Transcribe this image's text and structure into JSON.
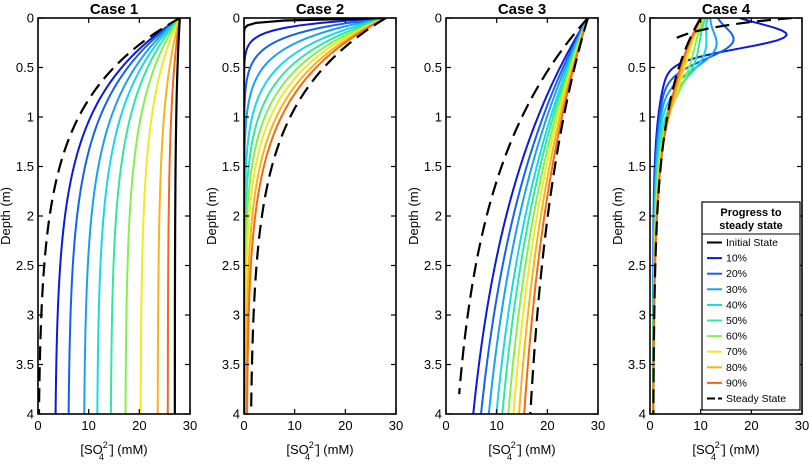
{
  "figure": {
    "colors": {
      "initial": "#000000",
      "steady": "#000000",
      "progress": [
        "#0a1ad8",
        "#1262f0",
        "#1aa0f0",
        "#18d8e6",
        "#2ee8a0",
        "#84f050",
        "#f0ea20",
        "#f8b418",
        "#f06a18"
      ]
    }
  },
  "legend": {
    "title_line1": "Progress to",
    "title_line2": "steady state",
    "items": [
      "Initial State",
      "10%",
      "20%",
      "30%",
      "40%",
      "50%",
      "60%",
      "70%",
      "80%",
      "90%",
      "Steady State"
    ]
  },
  "chart_data": [
    {
      "type": "line",
      "title": "Case 1",
      "xlabel_prefix": "[SO",
      "xlabel_sub": "4",
      "xlabel_sup": "2−",
      "xlabel_suffix": "] (mM)",
      "ylabel": "Depth (m)",
      "xlim": [
        0,
        30
      ],
      "ylim": [
        0,
        4
      ],
      "xticks": [
        "0",
        "10",
        "20",
        "30"
      ],
      "yticks": [
        "0",
        "0.5",
        "1",
        "1.5",
        "2",
        "2.5",
        "3",
        "3.5",
        "4"
      ],
      "y_inverted": true,
      "model": "sat",
      "series": [
        {
          "name": "Initial State",
          "c0": 28,
          "b": 27,
          "k": 0.8,
          "dashed": false
        },
        {
          "name": "10%",
          "c0": 28,
          "b": 3.3,
          "k": 0.8
        },
        {
          "name": "20%",
          "c0": 28,
          "b": 5.9,
          "k": 0.8
        },
        {
          "name": "30%",
          "c0": 28,
          "b": 9.0,
          "k": 0.8
        },
        {
          "name": "40%",
          "c0": 28,
          "b": 11.6,
          "k": 0.8
        },
        {
          "name": "50%",
          "c0": 28,
          "b": 14.3,
          "k": 0.8
        },
        {
          "name": "60%",
          "c0": 28,
          "b": 17.2,
          "k": 0.8
        },
        {
          "name": "70%",
          "c0": 28,
          "b": 20.2,
          "k": 0.8
        },
        {
          "name": "80%",
          "c0": 28,
          "b": 23.6,
          "k": 0.8
        },
        {
          "name": "90%",
          "c0": 28,
          "b": 25.6,
          "k": 0.8
        },
        {
          "name": "Steady State",
          "c0": 28,
          "b": 0,
          "k": 0.8,
          "dashed": true
        }
      ]
    },
    {
      "type": "line",
      "title": "Case 2",
      "xlabel_prefix": "[SO",
      "xlabel_sub": "4",
      "xlabel_sup": "2−",
      "xlabel_suffix": "] (mM)",
      "ylabel": "Depth (m)",
      "xlim": [
        0,
        30
      ],
      "ylim": [
        0,
        4
      ],
      "xticks": [
        "0",
        "10",
        "20",
        "30"
      ],
      "yticks": [
        "0",
        "0.5",
        "1",
        "1.5",
        "2",
        "2.5",
        "3",
        "3.5",
        "4"
      ],
      "y_inverted": true,
      "model": "exp",
      "series": [
        {
          "name": "Initial State",
          "c0": 28,
          "cb": 0,
          "L": 0.02
        },
        {
          "name": "10%",
          "c0": 28,
          "cb": 0,
          "L": 0.08
        },
        {
          "name": "20%",
          "c0": 28,
          "cb": 0,
          "L": 0.16
        },
        {
          "name": "30%",
          "c0": 28,
          "cb": 0,
          "L": 0.25
        },
        {
          "name": "40%",
          "c0": 28,
          "cb": 0,
          "L": 0.35
        },
        {
          "name": "50%",
          "c0": 28,
          "cb": 0,
          "L": 0.44
        },
        {
          "name": "60%",
          "c0": 28,
          "cb": 0,
          "L": 0.52
        },
        {
          "name": "70%",
          "c0": 28,
          "cb": 0.1,
          "L": 0.59
        },
        {
          "name": "80%",
          "c0": 28,
          "cb": 0.3,
          "L": 0.66
        },
        {
          "name": "90%",
          "c0": 28,
          "cb": 0.5,
          "L": 0.72
        },
        {
          "name": "Steady State",
          "c0": 28,
          "cb": 1.2,
          "L": 0.82,
          "dashed": true
        }
      ]
    },
    {
      "type": "line",
      "title": "Case 3",
      "xlabel_prefix": "[SO",
      "xlabel_sub": "4",
      "xlabel_sup": "2−",
      "xlabel_suffix": "] (mM)",
      "ylabel": "Depth (m)",
      "xlim": [
        0,
        30
      ],
      "ylim": [
        0,
        4
      ],
      "xticks": [
        "0",
        "10",
        "20",
        "30"
      ],
      "yticks": [
        "0",
        "0.5",
        "1",
        "1.5",
        "2",
        "2.5",
        "3",
        "3.5",
        "4"
      ],
      "y_inverted": true,
      "model": "exp",
      "series": [
        {
          "name": "Initial State",
          "c0": 28,
          "cb": 0,
          "L": 1.6,
          "dashed": true,
          "ymin": 0,
          "ymax": 3.8
        },
        {
          "name": "10%",
          "c0": 28,
          "cb": 1,
          "L": 2.2
        },
        {
          "name": "20%",
          "c0": 28,
          "cb": 2,
          "L": 2.4
        },
        {
          "name": "30%",
          "c0": 28,
          "cb": 3.5,
          "L": 2.5
        },
        {
          "name": "40%",
          "c0": 28,
          "cb": 5,
          "L": 2.6
        },
        {
          "name": "50%",
          "c0": 28,
          "cb": 6.5,
          "L": 2.6
        },
        {
          "name": "60%",
          "c0": 28,
          "cb": 8,
          "L": 2.6
        },
        {
          "name": "70%",
          "c0": 28,
          "cb": 9.3,
          "L": 2.6
        },
        {
          "name": "80%",
          "c0": 28,
          "cb": 10.7,
          "L": 2.6
        },
        {
          "name": "90%",
          "c0": 28,
          "cb": 12,
          "L": 2.6
        },
        {
          "name": "Steady State",
          "c0": 28,
          "cb": 14,
          "L": 2.4,
          "dashed": true
        }
      ]
    },
    {
      "type": "line",
      "title": "Case 4",
      "xlabel_prefix": "[SO",
      "xlabel_sub": "4",
      "xlabel_sup": "2−",
      "xlabel_suffix": "] (mM)",
      "ylabel": "Depth (m)",
      "xlim": [
        0,
        30
      ],
      "ylim": [
        0,
        4
      ],
      "xticks": [
        "0",
        "10",
        "20",
        "30"
      ],
      "yticks": [
        "0",
        "0.5",
        "1",
        "1.5",
        "2",
        "2.5",
        "3",
        "3.5",
        "4"
      ],
      "y_inverted": true,
      "model": "bulge",
      "series": [
        {
          "name": "Initial State",
          "c0": 28,
          "cb": 0,
          "L": 0.12,
          "dashed": true,
          "ymin": 0,
          "ymax": 0.2
        },
        {
          "name": "10%",
          "c0": 10,
          "B": 0.6,
          "L": 0.45,
          "A": 20,
          "ymu": 0.18,
          "s": 0.13
        },
        {
          "name": "20%",
          "c0": 10,
          "B": 0.6,
          "L": 0.5,
          "A": 10,
          "ymu": 0.25,
          "s": 0.17
        },
        {
          "name": "30%",
          "c0": 10,
          "B": 0.6,
          "L": 0.55,
          "A": 7,
          "ymu": 0.32,
          "s": 0.2
        },
        {
          "name": "40%",
          "c0": 10,
          "B": 0.6,
          "L": 0.6,
          "A": 5,
          "ymu": 0.38,
          "s": 0.24
        },
        {
          "name": "50%",
          "c0": 10,
          "B": 0.6,
          "L": 0.65,
          "A": 3.5,
          "ymu": 0.44,
          "s": 0.28
        },
        {
          "name": "60%",
          "c0": 10,
          "B": 0.6,
          "L": 0.7,
          "A": 2.5,
          "ymu": 0.5,
          "s": 0.32
        },
        {
          "name": "70%",
          "c0": 10,
          "B": 0.6,
          "L": 0.74,
          "A": 1.5,
          "ymu": 0.55,
          "s": 0.35
        },
        {
          "name": "80%",
          "c0": 10,
          "B": 0.6,
          "L": 0.78,
          "A": 0.9,
          "ymu": 0.6,
          "s": 0.38
        },
        {
          "name": "90%",
          "c0": 10,
          "B": 0.6,
          "L": 0.8,
          "A": 0.4,
          "ymu": 0.6,
          "s": 0.4
        },
        {
          "name": "Steady State",
          "c0": 10,
          "B": 0.6,
          "L": 0.82,
          "A": 0,
          "ymu": 0.6,
          "s": 0.4,
          "dashed": true
        }
      ]
    }
  ]
}
